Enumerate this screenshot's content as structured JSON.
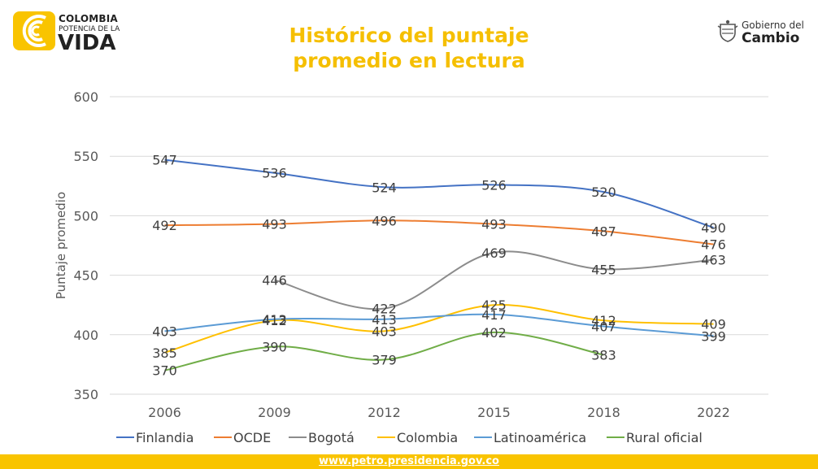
{
  "header": {
    "logo_left": {
      "line1": "COLOMBIA",
      "line2": "POTENCIA DE LA",
      "line3": "VIDA"
    },
    "logo_right": {
      "line1": "Gobierno del",
      "line2": "Cambio"
    },
    "title_line1": "Histórico del puntaje",
    "title_line2": "promedio en lectura"
  },
  "footer": {
    "url": "www.petro.presidencia.gov.co"
  },
  "colors": {
    "accent": "#f5bf00",
    "footer": "#f9c400"
  },
  "chart_data": {
    "type": "line",
    "title": "Histórico del puntaje promedio en lectura",
    "xlabel": "",
    "ylabel": "Puntaje promedio",
    "ylim": [
      350,
      600
    ],
    "yticks": [
      350,
      400,
      450,
      500,
      550,
      600
    ],
    "categories": [
      "2006",
      "2009",
      "2012",
      "2015",
      "2018",
      "2022"
    ],
    "grid": true,
    "legend": "bottom",
    "series": [
      {
        "name": "Finlandia",
        "color": "#4472c4",
        "values": [
          547,
          536,
          524,
          526,
          520,
          490
        ]
      },
      {
        "name": "OCDE",
        "color": "#ed7d31",
        "values": [
          492,
          493,
          496,
          493,
          487,
          476
        ]
      },
      {
        "name": "Bogotá",
        "color": "#8c8c8c",
        "values": [
          null,
          446,
          422,
          469,
          455,
          463
        ]
      },
      {
        "name": "Colombia",
        "color": "#ffc000",
        "values": [
          385,
          412,
          403,
          425,
          412,
          409
        ]
      },
      {
        "name": "Latinoamérica",
        "color": "#5b9bd5",
        "values": [
          403,
          413,
          413,
          417,
          407,
          399
        ]
      },
      {
        "name": "Rural oficial",
        "color": "#70ad47",
        "values": [
          370,
          390,
          379,
          402,
          383,
          null
        ]
      }
    ]
  }
}
